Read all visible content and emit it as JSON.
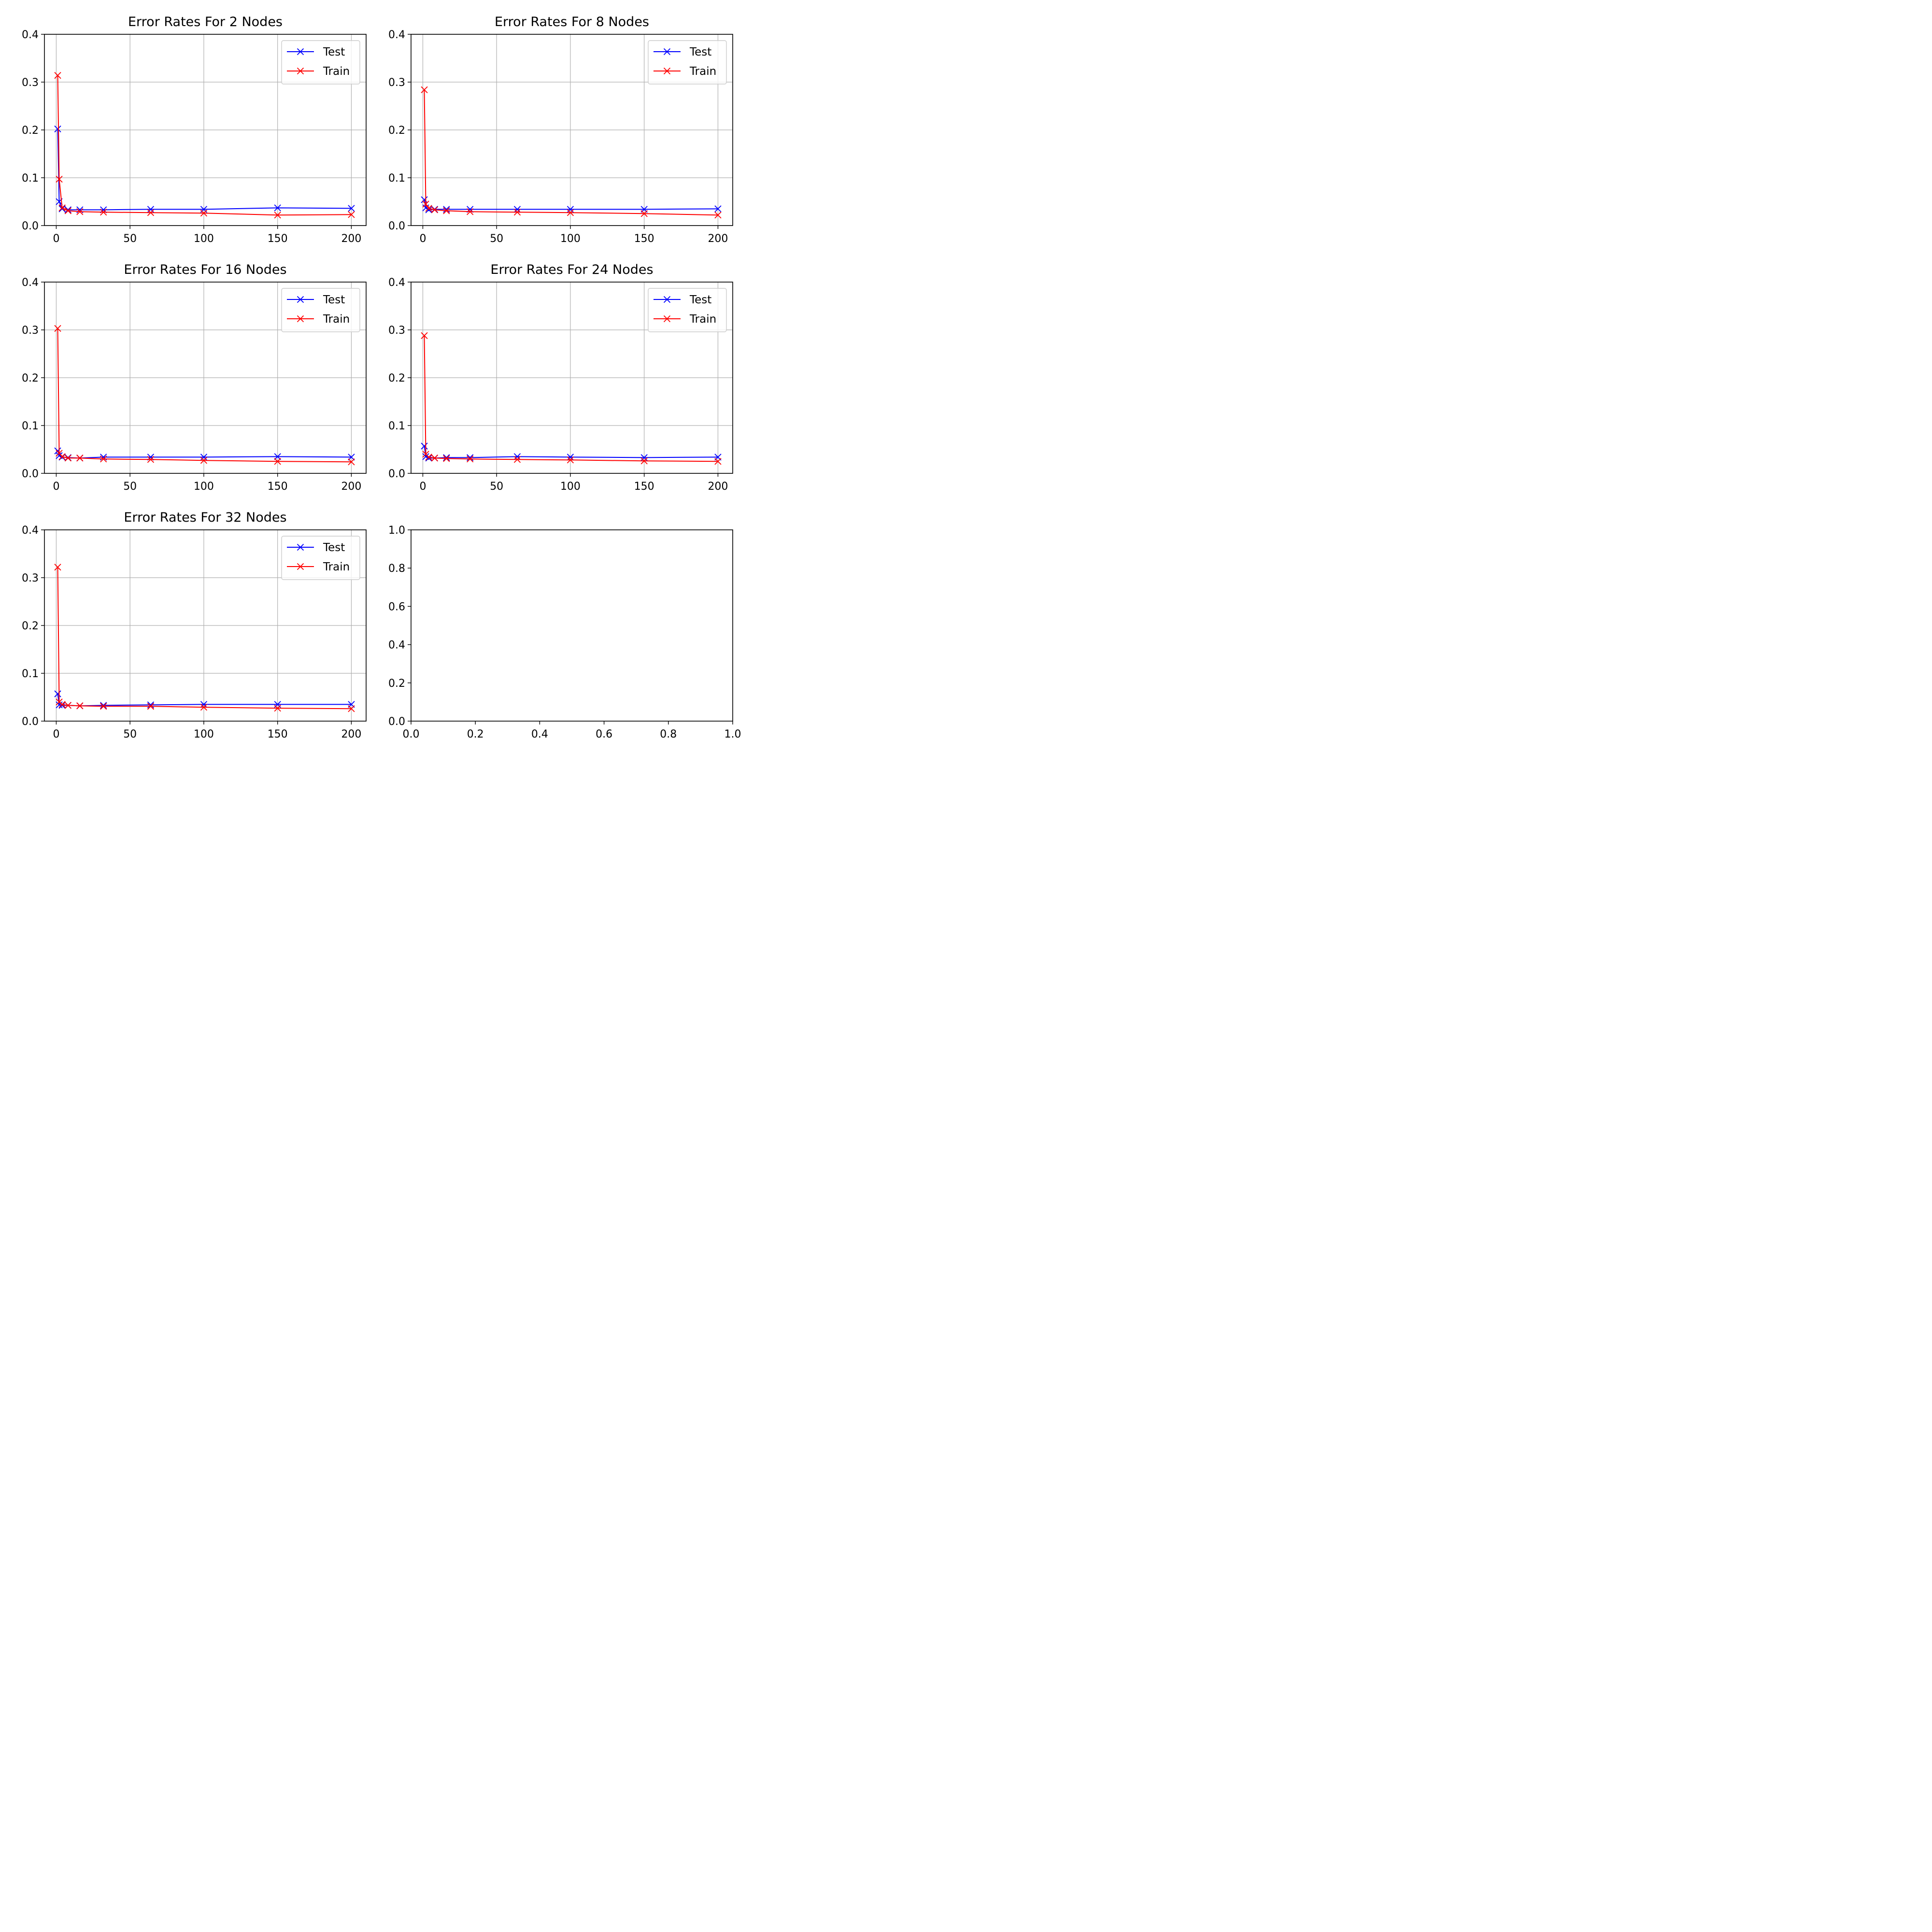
{
  "colors": {
    "test": "#0000ff",
    "train": "#ff0000"
  },
  "chart_data": [
    {
      "type": "line",
      "title": "Error Rates For 2 Nodes",
      "xlabel": "",
      "ylabel": "",
      "xlim": [
        -8,
        210
      ],
      "ylim": [
        0,
        0.4
      ],
      "xticks": [
        0,
        50,
        100,
        150,
        200
      ],
      "yticks": [
        0.0,
        0.1,
        0.2,
        0.3,
        0.4
      ],
      "xtick_labels": [
        "0",
        "50",
        "100",
        "150",
        "200"
      ],
      "ytick_labels": [
        "0.0",
        "0.1",
        "0.2",
        "0.3",
        "0.4"
      ],
      "grid": true,
      "legend_position": "upper-right",
      "x": [
        1,
        2,
        4,
        8,
        16,
        32,
        64,
        100,
        150,
        200
      ],
      "series": [
        {
          "name": "Test",
          "color": "#0000ff",
          "values": [
            0.202,
            0.05,
            0.035,
            0.033,
            0.033,
            0.033,
            0.034,
            0.034,
            0.037,
            0.036
          ]
        },
        {
          "name": "Train",
          "color": "#ff0000",
          "values": [
            0.314,
            0.097,
            0.037,
            0.031,
            0.029,
            0.028,
            0.027,
            0.026,
            0.022,
            0.023
          ]
        }
      ]
    },
    {
      "type": "line",
      "title": "Error Rates For 8 Nodes",
      "xlabel": "",
      "ylabel": "",
      "xlim": [
        -8,
        210
      ],
      "ylim": [
        0,
        0.4
      ],
      "xticks": [
        0,
        50,
        100,
        150,
        200
      ],
      "yticks": [
        0.0,
        0.1,
        0.2,
        0.3,
        0.4
      ],
      "xtick_labels": [
        "0",
        "50",
        "100",
        "150",
        "200"
      ],
      "ytick_labels": [
        "0.0",
        "0.1",
        "0.2",
        "0.3",
        "0.4"
      ],
      "grid": true,
      "legend_position": "upper-right",
      "x": [
        1,
        2,
        4,
        8,
        16,
        32,
        64,
        100,
        150,
        200
      ],
      "series": [
        {
          "name": "Test",
          "color": "#0000ff",
          "values": [
            0.054,
            0.037,
            0.033,
            0.034,
            0.034,
            0.034,
            0.034,
            0.034,
            0.034,
            0.035
          ]
        },
        {
          "name": "Train",
          "color": "#ff0000",
          "values": [
            0.284,
            0.045,
            0.036,
            0.033,
            0.031,
            0.029,
            0.028,
            0.027,
            0.025,
            0.022
          ]
        }
      ]
    },
    {
      "type": "line",
      "title": "Error Rates For 16 Nodes",
      "xlabel": "",
      "ylabel": "",
      "xlim": [
        -8,
        210
      ],
      "ylim": [
        0,
        0.4
      ],
      "xticks": [
        0,
        50,
        100,
        150,
        200
      ],
      "yticks": [
        0.0,
        0.1,
        0.2,
        0.3,
        0.4
      ],
      "xtick_labels": [
        "0",
        "50",
        "100",
        "150",
        "200"
      ],
      "ytick_labels": [
        "0.0",
        "0.1",
        "0.2",
        "0.3",
        "0.4"
      ],
      "grid": true,
      "legend_position": "upper-right",
      "x": [
        1,
        2,
        4,
        8,
        16,
        32,
        64,
        100,
        150,
        200
      ],
      "series": [
        {
          "name": "Test",
          "color": "#0000ff",
          "values": [
            0.047,
            0.037,
            0.034,
            0.033,
            0.032,
            0.034,
            0.034,
            0.034,
            0.035,
            0.034
          ]
        },
        {
          "name": "Train",
          "color": "#ff0000",
          "values": [
            0.303,
            0.042,
            0.035,
            0.032,
            0.032,
            0.03,
            0.029,
            0.027,
            0.025,
            0.024
          ]
        }
      ]
    },
    {
      "type": "line",
      "title": "Error Rates For 24 Nodes",
      "xlabel": "",
      "ylabel": "",
      "xlim": [
        -8,
        210
      ],
      "ylim": [
        0,
        0.4
      ],
      "xticks": [
        0,
        50,
        100,
        150,
        200
      ],
      "yticks": [
        0.0,
        0.1,
        0.2,
        0.3,
        0.4
      ],
      "xtick_labels": [
        "0",
        "50",
        "100",
        "150",
        "200"
      ],
      "ytick_labels": [
        "0.0",
        "0.1",
        "0.2",
        "0.3",
        "0.4"
      ],
      "grid": true,
      "legend_position": "upper-right",
      "x": [
        1,
        2,
        4,
        8,
        16,
        32,
        64,
        100,
        150,
        200
      ],
      "series": [
        {
          "name": "Test",
          "color": "#0000ff",
          "values": [
            0.057,
            0.035,
            0.032,
            0.032,
            0.033,
            0.033,
            0.035,
            0.034,
            0.033,
            0.034
          ]
        },
        {
          "name": "Train",
          "color": "#ff0000",
          "values": [
            0.288,
            0.04,
            0.034,
            0.032,
            0.031,
            0.03,
            0.029,
            0.028,
            0.026,
            0.025
          ]
        }
      ]
    },
    {
      "type": "line",
      "title": "Error Rates For 32 Nodes",
      "xlabel": "",
      "ylabel": "",
      "xlim": [
        -8,
        210
      ],
      "ylim": [
        0,
        0.4
      ],
      "xticks": [
        0,
        50,
        100,
        150,
        200
      ],
      "yticks": [
        0.0,
        0.1,
        0.2,
        0.3,
        0.4
      ],
      "xtick_labels": [
        "0",
        "50",
        "100",
        "150",
        "200"
      ],
      "ytick_labels": [
        "0.0",
        "0.1",
        "0.2",
        "0.3",
        "0.4"
      ],
      "grid": true,
      "legend_position": "upper-right",
      "x": [
        1,
        2,
        4,
        8,
        16,
        32,
        64,
        100,
        150,
        200
      ],
      "series": [
        {
          "name": "Test",
          "color": "#0000ff",
          "values": [
            0.057,
            0.034,
            0.033,
            0.033,
            0.032,
            0.033,
            0.034,
            0.035,
            0.035,
            0.035
          ]
        },
        {
          "name": "Train",
          "color": "#ff0000",
          "values": [
            0.322,
            0.04,
            0.035,
            0.033,
            0.032,
            0.031,
            0.031,
            0.029,
            0.027,
            0.026
          ]
        }
      ]
    },
    {
      "type": "line",
      "title": "",
      "xlabel": "",
      "ylabel": "",
      "xlim": [
        0,
        1
      ],
      "ylim": [
        0,
        1
      ],
      "xticks": [
        0,
        0.2,
        0.4,
        0.6,
        0.8,
        1.0
      ],
      "yticks": [
        0,
        0.2,
        0.4,
        0.6,
        0.8,
        1.0
      ],
      "xtick_labels": [
        "0.0",
        "0.2",
        "0.4",
        "0.6",
        "0.8",
        "1.0"
      ],
      "ytick_labels": [
        "0.0",
        "0.2",
        "0.4",
        "0.6",
        "0.8",
        "1.0"
      ],
      "grid": false,
      "legend_position": "",
      "x": [],
      "series": []
    }
  ]
}
